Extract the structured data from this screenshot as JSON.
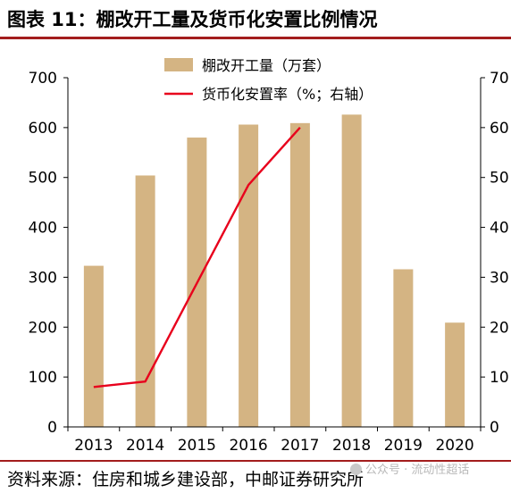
{
  "header": {
    "title": "图表 11：棚改开工量及货币化安置比例情况"
  },
  "footer": {
    "source": "资料来源：住房和城乡建设部，中邮证券研究所",
    "watermark": "公众号 · 流动性超话"
  },
  "colors": {
    "bar": "#d4b483",
    "line": "#e8001c",
    "accent": "#a31d1d",
    "axis": "#000000"
  },
  "chart_data": {
    "type": "bar",
    "categories": [
      "2013",
      "2014",
      "2015",
      "2016",
      "2017",
      "2018",
      "2019",
      "2020"
    ],
    "series": [
      {
        "name": "棚改开工量（万套）",
        "type": "bar",
        "axis": "left",
        "values": [
          323,
          504,
          580,
          606,
          609,
          626,
          316,
          209
        ]
      },
      {
        "name": "货币化安置率（%；右轴）",
        "type": "line",
        "axis": "right",
        "values": [
          8,
          9.1,
          null,
          48.5,
          60,
          null,
          null,
          null
        ]
      }
    ],
    "left_axis": {
      "min": 0,
      "max": 700,
      "ticks": [
        "0",
        "100",
        "200",
        "300",
        "400",
        "500",
        "600",
        "700"
      ]
    },
    "right_axis": {
      "min": 0,
      "max": 70,
      "ticks": [
        "0",
        "10",
        "20",
        "30",
        "40",
        "50",
        "60",
        "70"
      ]
    },
    "grid": false,
    "legend_position": "top-center"
  }
}
